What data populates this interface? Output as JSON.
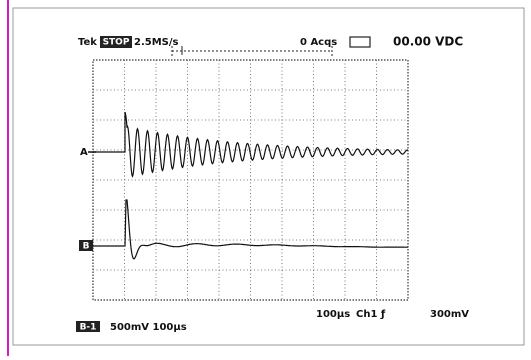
{
  "header": {
    "brand": "Tek",
    "status": "STOP",
    "sample_rate": "2.5MS/s",
    "acquisitions": "0 Acqs",
    "readout": "00.00 VDC"
  },
  "markers": {
    "a": "A",
    "b": "B"
  },
  "footer": {
    "channel": "B-1",
    "settings": "500mV 100µs",
    "timebase": "100µs",
    "trigger": "Ch1 ƒ",
    "level": "300mV"
  }
}
